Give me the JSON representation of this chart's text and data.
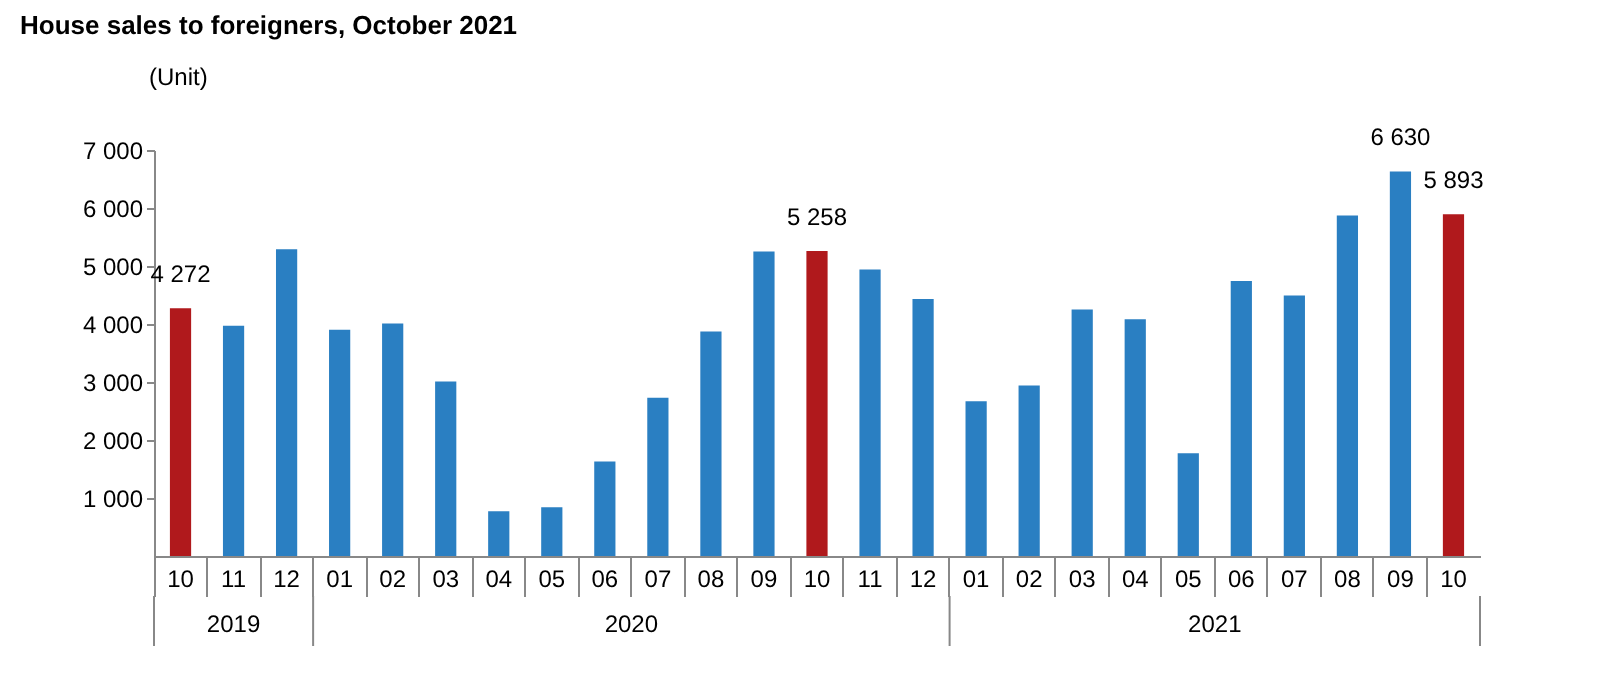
{
  "chart_data": {
    "type": "bar",
    "title": "House sales to foreigners, October 2021",
    "ylabel": "(Unit)",
    "categories": [
      "10",
      "11",
      "12",
      "01",
      "02",
      "03",
      "04",
      "05",
      "06",
      "07",
      "08",
      "09",
      "10",
      "11",
      "12",
      "01",
      "02",
      "03",
      "04",
      "05",
      "06",
      "07",
      "08",
      "09",
      "10"
    ],
    "values": [
      4272,
      3970,
      5290,
      3900,
      4010,
      3010,
      770,
      840,
      1630,
      2730,
      3870,
      5250,
      5258,
      4940,
      4430,
      2670,
      2940,
      4250,
      4080,
      1770,
      4740,
      4490,
      5870,
      6630,
      5893
    ],
    "value_labels": [
      "4 272",
      null,
      null,
      null,
      null,
      null,
      null,
      null,
      null,
      null,
      null,
      null,
      "5 258",
      null,
      null,
      null,
      null,
      null,
      null,
      null,
      null,
      null,
      null,
      "6 630",
      "5 893"
    ],
    "colors": [
      "#b0191c",
      "#2a7fc2",
      "#2a7fc2",
      "#2a7fc2",
      "#2a7fc2",
      "#2a7fc2",
      "#2a7fc2",
      "#2a7fc2",
      "#2a7fc2",
      "#2a7fc2",
      "#2a7fc2",
      "#2a7fc2",
      "#b0191c",
      "#2a7fc2",
      "#2a7fc2",
      "#2a7fc2",
      "#2a7fc2",
      "#2a7fc2",
      "#2a7fc2",
      "#2a7fc2",
      "#2a7fc2",
      "#2a7fc2",
      "#2a7fc2",
      "#2a7fc2",
      "#b0191c"
    ],
    "ylim": [
      0,
      7000
    ],
    "yticks": [
      {
        "value": 1000,
        "label": "1 000"
      },
      {
        "value": 2000,
        "label": "2 000"
      },
      {
        "value": 3000,
        "label": "3 000"
      },
      {
        "value": 4000,
        "label": "4 000"
      },
      {
        "value": 5000,
        "label": "5 000"
      },
      {
        "value": 6000,
        "label": "6 000"
      },
      {
        "value": 7000,
        "label": "7 000"
      }
    ],
    "annotations": [
      "2019",
      "2020",
      "2021"
    ],
    "grid": false
  }
}
